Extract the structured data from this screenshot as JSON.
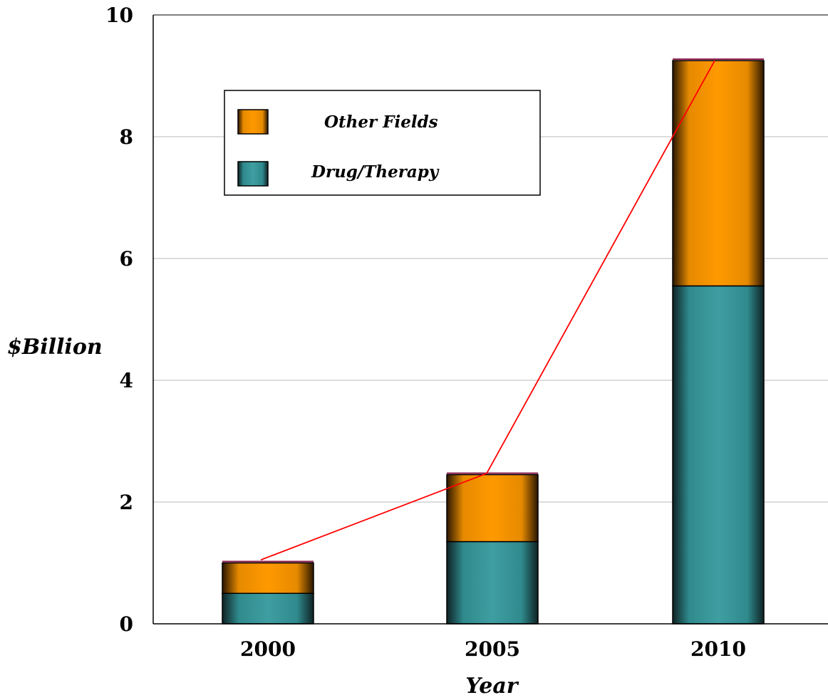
{
  "chart_data": {
    "type": "bar",
    "stacked": true,
    "title": "",
    "xlabel": "Year",
    "ylabel": "$Billion",
    "categories": [
      "2000",
      "2005",
      "2010"
    ],
    "ylim": [
      0,
      10
    ],
    "yticks": [
      "0",
      "2",
      "4",
      "6",
      "8",
      "10"
    ],
    "grid": true,
    "legend_position": "top-left",
    "series": [
      {
        "name": "Drug/Therapy",
        "values": [
          0.5,
          1.35,
          5.55
        ],
        "color": "#3a9a9d"
      },
      {
        "name": "Other Fields",
        "values": [
          0.5,
          1.1,
          3.7
        ],
        "color": "#ff9900"
      }
    ],
    "trend_line": {
      "values": [
        1.05,
        2.47,
        9.25
      ],
      "color": "#ff0000"
    }
  }
}
